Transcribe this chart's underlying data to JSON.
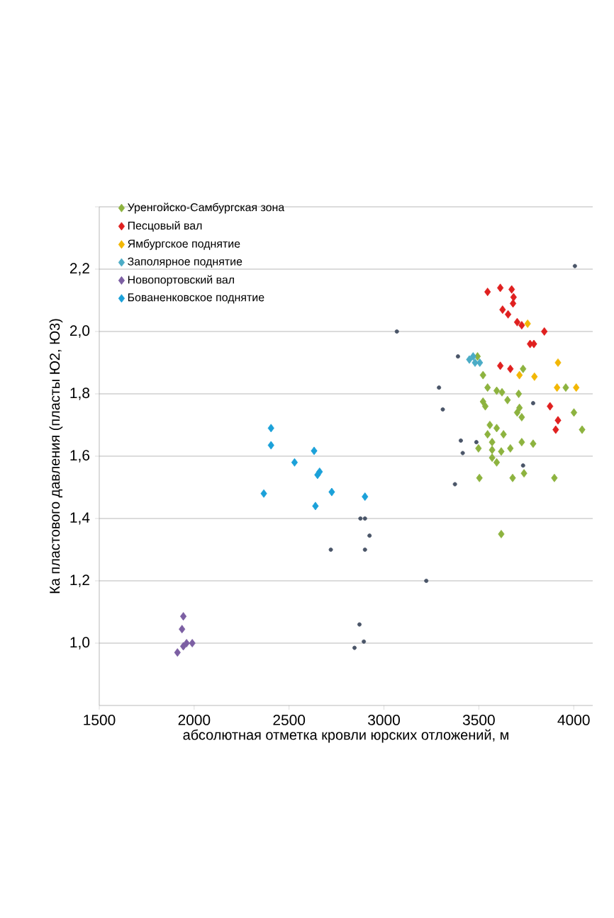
{
  "chart_data": {
    "type": "scatter",
    "xlabel": "абсолютная отметка кровли юрских отложений, м",
    "ylabel": "Ка пластового давления  (пласты Ю2, Ю3)",
    "xlim": [
      1500,
      4100
    ],
    "ylim": [
      0.8,
      2.4
    ],
    "xticks": [
      1500,
      2000,
      2500,
      3000,
      3500,
      4000
    ],
    "yticks": [
      {
        "value": 1.0,
        "label": "1,0"
      },
      {
        "value": 1.2,
        "label": "1,2"
      },
      {
        "value": 1.4,
        "label": "1,4"
      },
      {
        "value": 1.6,
        "label": "1,6"
      },
      {
        "value": 1.8,
        "label": "1,8"
      },
      {
        "value": 2.0,
        "label": "2,0"
      },
      {
        "value": 2.2,
        "label": "2,2"
      },
      {
        "value": 2.4,
        "label": null
      }
    ],
    "grid": "y",
    "legend": "top left",
    "marker": "diamond",
    "series": [
      {
        "name": "Уренгойско-Самбургская зона",
        "color": "#8db33f",
        "x": [
          3493,
          3522,
          3546,
          3594,
          3622,
          3522,
          3534,
          3651,
          3710,
          3714,
          3726,
          3702,
          3558,
          3594,
          3546,
          3630,
          3570,
          3726,
          3786,
          3498,
          3570,
          3618,
          3666,
          3570,
          3594,
          3503,
          3678,
          3738,
          3898,
          3618,
          3958,
          4001,
          4044,
          3733
        ],
        "values": [
          1.92,
          1.86,
          1.82,
          1.81,
          1.805,
          1.775,
          1.76,
          1.78,
          1.8,
          1.755,
          1.725,
          1.74,
          1.7,
          1.69,
          1.67,
          1.67,
          1.645,
          1.645,
          1.64,
          1.625,
          1.62,
          1.615,
          1.625,
          1.595,
          1.58,
          1.53,
          1.53,
          1.545,
          1.53,
          1.35,
          1.82,
          1.74,
          1.685,
          1.88
        ]
      },
      {
        "name": "Песцовый вал",
        "color": "#e0201f",
        "x": [
          3546,
          3613,
          3673,
          3683,
          3680,
          3625,
          3654,
          3702,
          3726,
          3845,
          3770,
          3790,
          3613,
          3666,
          3875,
          3917,
          3905
        ],
        "values": [
          2.127,
          2.14,
          2.135,
          2.11,
          2.09,
          2.07,
          2.055,
          2.03,
          2.02,
          2.0,
          1.96,
          1.96,
          1.89,
          1.88,
          1.76,
          1.715,
          1.685
        ]
      },
      {
        "name": "Ямбургское поднятие",
        "color": "#f2b705",
        "x": [
          3757,
          3917,
          3714,
          3793,
          3912,
          4013
        ],
        "values": [
          2.025,
          1.9,
          1.86,
          1.855,
          1.82,
          1.82
        ]
      },
      {
        "name": "Заполярное поднятие",
        "color": "#4bacc6",
        "x": [
          3450,
          3470,
          3480,
          3505
        ],
        "values": [
          1.91,
          1.92,
          1.9,
          1.9
        ]
      },
      {
        "name": "Новопортовский вал",
        "color": "#7c5fa3",
        "x": [
          1912,
          1943,
          1936,
          1943,
          1990,
          1960
        ],
        "values": [
          0.97,
          0.99,
          1.045,
          1.086,
          1.0,
          1.0
        ]
      },
      {
        "name": "Бованенковское поднятие",
        "color": "#1ba1d9",
        "x": [
          2405,
          2405,
          2632,
          2529,
          2367,
          2661,
          2650,
          2639,
          2725,
          2900
        ],
        "values": [
          1.69,
          1.635,
          1.617,
          1.58,
          1.48,
          1.55,
          1.54,
          1.44,
          1.485,
          1.47
        ]
      },
      {
        "color": "#4a5568",
        "marker": "circle",
        "x": [
          3068,
          4006,
          3390,
          3290,
          3310,
          3405,
          3487,
          3415,
          3786,
          3374,
          3733,
          3223,
          2720,
          2900,
          2876,
          2924,
          2900,
          2871,
          2845,
          2894
        ],
        "values": [
          2.0,
          2.21,
          1.92,
          1.82,
          1.75,
          1.65,
          1.645,
          1.61,
          1.77,
          1.51,
          1.57,
          1.2,
          1.3,
          1.4,
          1.4,
          1.345,
          1.3,
          1.06,
          0.985,
          1.005
        ]
      }
    ]
  }
}
